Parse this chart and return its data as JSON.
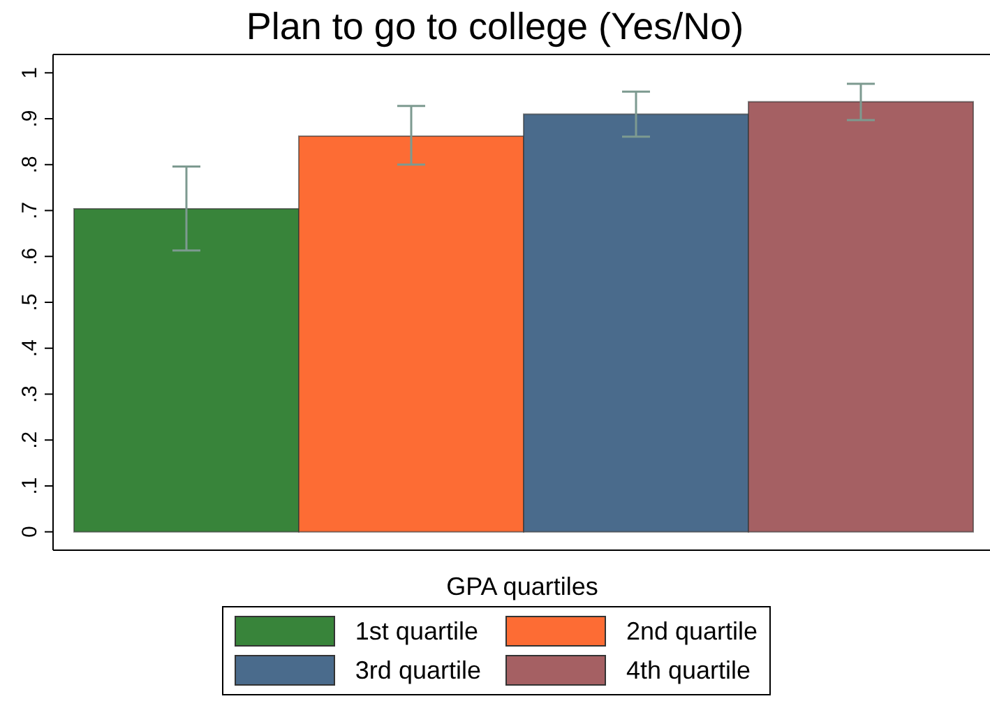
{
  "chart_data": {
    "type": "bar",
    "title": "Plan to go to college (Yes/No)",
    "xlabel": "GPA quartiles",
    "categories": [
      null
    ],
    "series": [
      {
        "name": "1st quartile",
        "color": "#38843a",
        "values": [
          0.704
        ],
        "errors": [
          [
            0.613,
            0.796
          ]
        ]
      },
      {
        "name": "2nd quartile",
        "color": "#fd6c34",
        "values": [
          0.862
        ],
        "errors": [
          [
            0.8,
            0.928
          ]
        ]
      },
      {
        "name": "3rd quartile",
        "color": "#4a6b8c",
        "values": [
          0.91
        ],
        "errors": [
          [
            0.861,
            0.959
          ]
        ]
      },
      {
        "name": "4th quartile",
        "color": "#a56063",
        "values": [
          0.937
        ],
        "errors": [
          [
            0.897,
            0.976
          ]
        ]
      }
    ],
    "ylim": [
      -0.04,
      1.04
    ],
    "yticks": [
      0,
      {
        "value": 0.1,
        "label": ".1"
      },
      {
        "value": 0.2,
        "label": ".2"
      },
      {
        "value": 0.3,
        "label": ".3"
      },
      {
        "value": 0.4,
        "label": ".4"
      },
      {
        "value": 0.5,
        "label": ".5"
      },
      {
        "value": 0.6,
        "label": ".6"
      },
      {
        "value": 0.7,
        "label": ".7"
      },
      {
        "value": 0.8,
        "label": ".8"
      },
      {
        "value": 0.9,
        "label": ".9"
      },
      1
    ],
    "legend": "bottom"
  }
}
